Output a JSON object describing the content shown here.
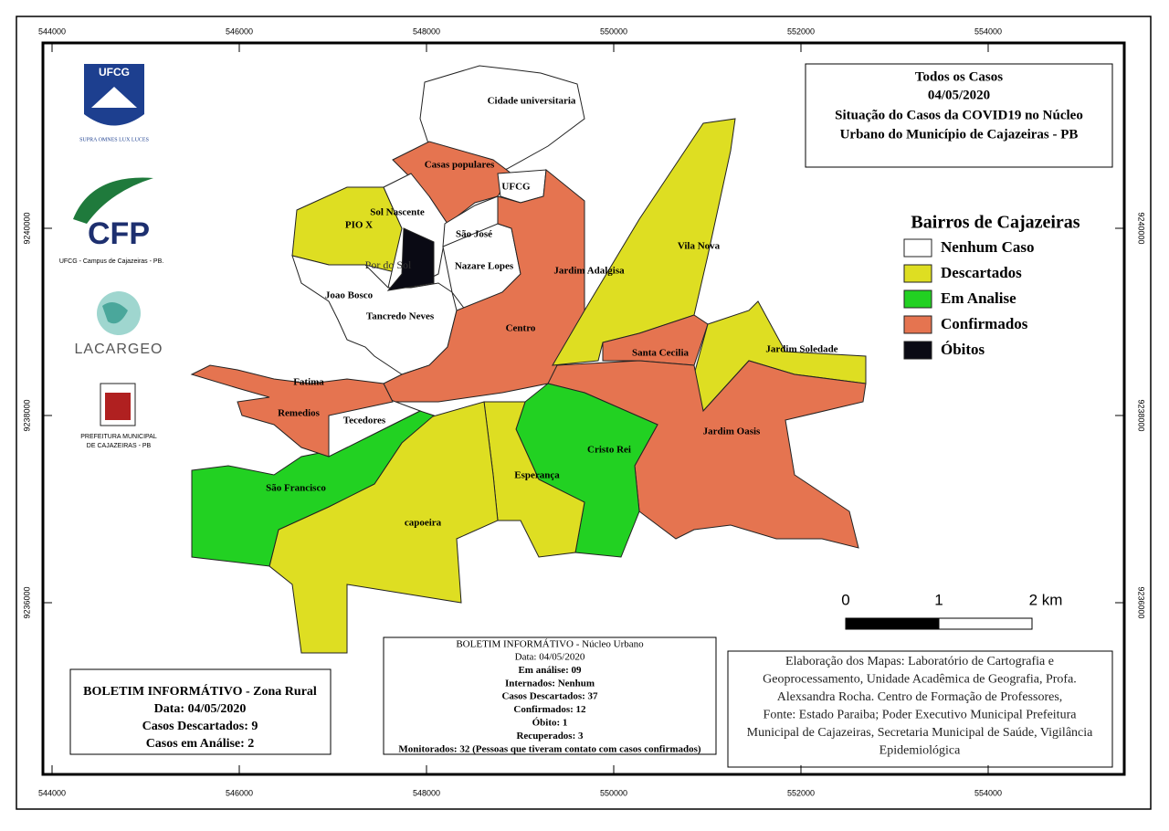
{
  "title": {
    "lines": [
      "Todos os Casos",
      "04/05/2020",
      "Situação do Casos da COVID19 no Núcleo",
      "Urbano do Município de Cajazeiras - PB"
    ]
  },
  "grid": {
    "x_labels": [
      "544000",
      "546000",
      "548000",
      "550000",
      "552000",
      "554000"
    ],
    "y_labels": [
      "9240000",
      "9238000",
      "9236000"
    ]
  },
  "logos": {
    "ufcg": "UFCG",
    "ufcg_motto": "SUPRA OMNES LUX LUCES",
    "cfp": "CFP",
    "cfp_caption": "UFCG - Campus de Cajazeiras - PB.",
    "lacargeo": "LACARGEO",
    "prefeitura": [
      "PREFEITURA MUNICIPAL",
      "DE CAJAZEIRAS - PB"
    ]
  },
  "legend": {
    "title": "Bairros de Cajazeiras",
    "items": [
      {
        "label": "Nenhum Caso",
        "color": "#ffffff"
      },
      {
        "label": "Descartados",
        "color": "#dede22"
      },
      {
        "label": "Em Analise",
        "color": "#22d122"
      },
      {
        "label": "Confirmados",
        "color": "#e57450"
      },
      {
        "label": "Óbitos",
        "color": "#0a0a14"
      }
    ]
  },
  "neighborhoods": [
    {
      "name": "Cidade universitaria",
      "status": "Nenhum Caso"
    },
    {
      "name": "Casas populares",
      "status": "Confirmados"
    },
    {
      "name": "UFCG",
      "status": "Nenhum Caso"
    },
    {
      "name": "PIO X",
      "status": "Descartados"
    },
    {
      "name": "Sol Nascente",
      "status": "Nenhum Caso"
    },
    {
      "name": "Por do Sol",
      "status": "Óbitos"
    },
    {
      "name": "São José",
      "status": "Nenhum Caso"
    },
    {
      "name": "Nazare Lopes",
      "status": "Nenhum Caso"
    },
    {
      "name": "Centro",
      "status": "Confirmados"
    },
    {
      "name": "Vila Nova",
      "status": "Descartados"
    },
    {
      "name": "Santa Cecilia",
      "status": "Confirmados"
    },
    {
      "name": "Jardim Soledade",
      "status": "Descartados"
    },
    {
      "name": "Jardim Oasis",
      "status": "Confirmados"
    },
    {
      "name": "Cristo Rei",
      "status": "Em Analise"
    },
    {
      "name": "Esperança",
      "status": "Descartados"
    },
    {
      "name": "capoeira",
      "status": "Descartados"
    },
    {
      "name": "São Francisco",
      "status": "Em Analise"
    },
    {
      "name": "Tecedores",
      "status": "Nenhum Caso"
    },
    {
      "name": "Fatima",
      "status": "Confirmados"
    },
    {
      "name": "Remedios",
      "status": "Confirmados"
    },
    {
      "name": "Joao Bosco",
      "status": "Nenhum Caso"
    },
    {
      "name": "Tancredo Neves",
      "status": "Nenhum Caso"
    },
    {
      "name": "Jardim Adalgisa",
      "status": "Confirmados"
    }
  ],
  "scale_bar": [
    "0",
    "1",
    "2 km"
  ],
  "bulletin_urban": {
    "title": "BOLETIM INFORMÁTIVO - Núcleo Urbano",
    "lines": [
      "Data: 04/05/2020",
      "Em análise: 09",
      "Internados: Nenhum",
      "Casos Descartados: 37",
      "Confirmados: 12",
      "Óbito: 1",
      "Recuperados: 3",
      "Monitorados: 32 (Pessoas que tiveram contato com casos confirmados)"
    ]
  },
  "bulletin_rural": {
    "lines": [
      "BOLETIM INFORMÁTIVO - Zona Rural",
      "Data: 04/05/2020",
      "Casos Descartados: 9",
      "Casos em Análise: 2"
    ]
  },
  "credits": {
    "lines": [
      "Elaboração dos Mapas: Laboratório de Cartografia e",
      "Geoprocessamento, Unidade Acadêmica de Geografia, Profa.",
      "Alexsandra Rocha. Centro de Formação de Professores,",
      "Fonte: Estado Paraiba; Poder Executivo Municipal Prefeitura",
      "Municipal de Cajazeiras, Secretaria Municipal de Saúde, Vigilância",
      "Epidemiológica"
    ]
  }
}
